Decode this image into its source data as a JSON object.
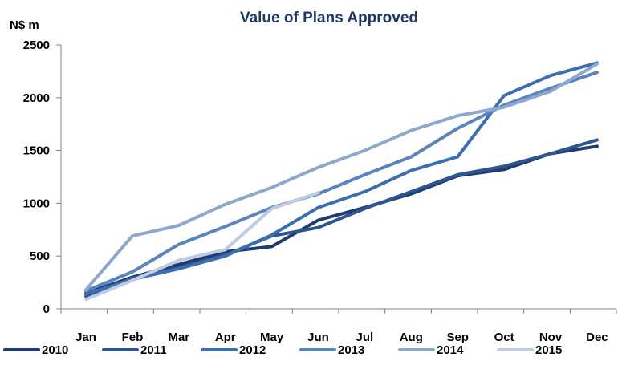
{
  "chart_data": {
    "type": "line",
    "title": "Value of Plans Approved",
    "ylabel": "N$ m",
    "xlabel": "",
    "ylim": [
      0,
      2500
    ],
    "yticks": [
      0,
      500,
      1000,
      1500,
      2000,
      2500
    ],
    "categories": [
      "Jan",
      "Feb",
      "Mar",
      "Apr",
      "May",
      "Jun",
      "Jul",
      "Aug",
      "Sep",
      "Oct",
      "Nov",
      "Dec"
    ],
    "grid": false,
    "legend": "bottom",
    "series": [
      {
        "name": "2010",
        "color": "#1f3b6f",
        "values": [
          150,
          300,
          420,
          540,
          590,
          840,
          960,
          1090,
          1260,
          1320,
          1470,
          1540
        ]
      },
      {
        "name": "2011",
        "color": "#2e5590",
        "values": [
          120,
          290,
          390,
          510,
          690,
          770,
          950,
          1110,
          1270,
          1350,
          1470,
          1600
        ]
      },
      {
        "name": "2012",
        "color": "#3d6fb0",
        "values": [
          140,
          280,
          380,
          500,
          700,
          960,
          1110,
          1310,
          1440,
          2020,
          2210,
          2330
        ]
      },
      {
        "name": "2013",
        "color": "#5a84bb",
        "values": [
          170,
          350,
          610,
          780,
          960,
          1090,
          1270,
          1440,
          1710,
          1930,
          2090,
          2240
        ]
      },
      {
        "name": "2014",
        "color": "#8ea7cc",
        "values": [
          180,
          690,
          790,
          990,
          1150,
          1340,
          1500,
          1690,
          1830,
          1910,
          2060,
          2320
        ]
      },
      {
        "name": "2015",
        "color": "#bdcbe3",
        "values": [
          90,
          270,
          460,
          560,
          950,
          1100,
          null,
          null,
          null,
          null,
          null,
          null
        ]
      }
    ]
  }
}
